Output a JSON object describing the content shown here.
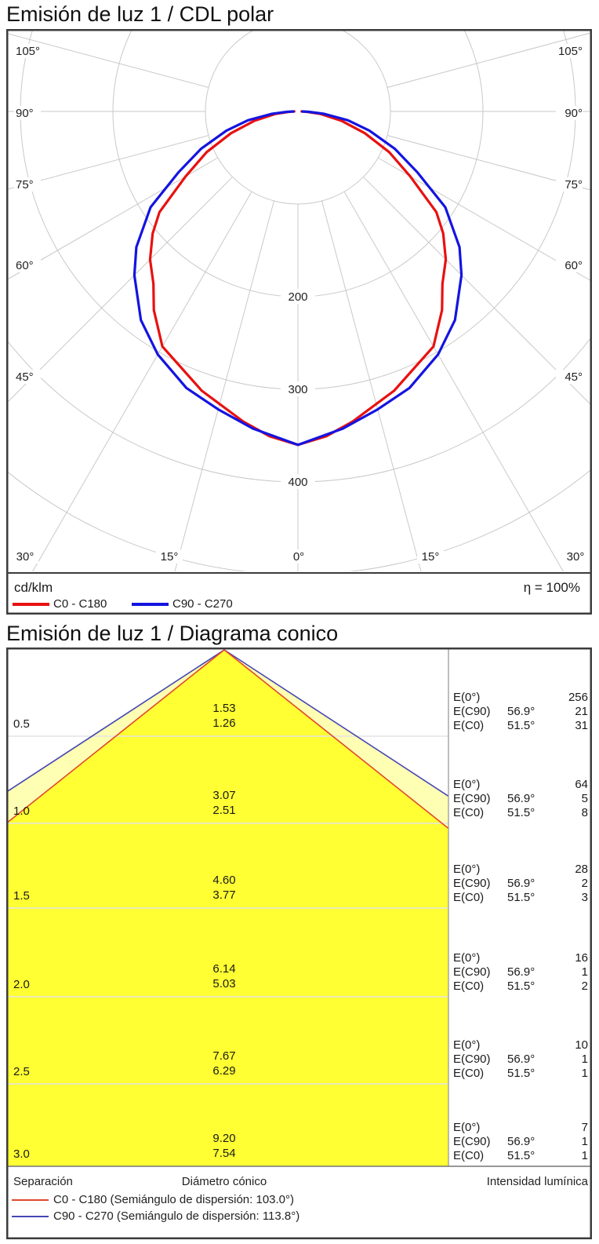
{
  "polar": {
    "title": "Emisión de luz 1 / CDL polar",
    "unit": "cd/klm",
    "efficiency": "η = 100%",
    "legend": [
      {
        "label": "C0 - C180",
        "color": "#e81111"
      },
      {
        "label": "C90 - C270",
        "color": "#1414e0"
      }
    ],
    "chart_data": {
      "type": "polar-intensity",
      "unit": "cd/klm",
      "gamma_step_deg": 15,
      "gamma_max_deg": 105,
      "ring_values": [
        100,
        200,
        300,
        400,
        500
      ],
      "ring_labels": [
        "200",
        "300",
        "400"
      ],
      "left_angle_labels": [
        "105°",
        "90°",
        "75°",
        "60°",
        "45°"
      ],
      "right_angle_labels": [
        "105°",
        "90°",
        "75°",
        "60°",
        "45°"
      ],
      "bottom_angle_labels": [
        "30°",
        "15°",
        "0°",
        "15°",
        "30°"
      ],
      "series": [
        {
          "name": "C0 - C180",
          "color": "#e81111",
          "points_deg_cd_per_klm": [
            [
              0,
              360
            ],
            [
              5,
              352
            ],
            [
              10,
              340
            ],
            [
              19,
              319
            ],
            [
              30,
              293
            ],
            [
              36,
              265
            ],
            [
              40,
              243
            ],
            [
              45,
              226
            ],
            [
              50,
              205
            ],
            [
              54,
              185
            ],
            [
              60,
              140
            ],
            [
              66,
              108
            ],
            [
              72,
              76
            ],
            [
              78,
              48
            ],
            [
              84,
              24
            ],
            [
              88,
              9
            ],
            [
              90,
              4
            ]
          ]
        },
        {
          "name": "C90 - C270",
          "color": "#1414e0",
          "points_deg_cd_per_klm": [
            [
              0,
              360
            ],
            [
              8,
              346
            ],
            [
              15,
              333
            ],
            [
              22,
              322
            ],
            [
              30,
              303
            ],
            [
              37,
              282
            ],
            [
              45,
              250
            ],
            [
              50,
              228
            ],
            [
              57,
              190
            ],
            [
              63,
              145
            ],
            [
              69,
              112
            ],
            [
              75,
              80
            ],
            [
              80,
              55
            ],
            [
              85,
              28
            ],
            [
              88,
              12
            ],
            [
              90,
              5
            ]
          ]
        }
      ]
    }
  },
  "cone": {
    "title": "Emisión de luz 1 / Diagrama conico",
    "footer": {
      "col_separation": "Separación",
      "col_diameter": "Diámetro cónico",
      "col_intensity": "Intensidad lumínica"
    },
    "legend": [
      {
        "label": "C0 - C180 (Semiángulo de dispersión: 103.0°)",
        "color": "#e0492e"
      },
      {
        "label": "C90 - C270 (Semiángulo de dispersión: 113.8°)",
        "color": "#4646b4"
      }
    ],
    "chart_data": {
      "type": "cone-diagram",
      "beam_half_angle_c0_deg": 51.5,
      "beam_half_angle_c90_deg": 56.9,
      "full_angle_c0_deg": 103.0,
      "full_angle_c90_deg": 113.8,
      "row_value_labels": {
        "e0": "E(0°)",
        "ec90": "E(C90)",
        "ec0": "E(C0)",
        "angle_c90": "56.9°",
        "angle_c0": "51.5°"
      },
      "rows": [
        {
          "separation": "0.5",
          "diameter_c90": "1.53",
          "diameter_c0": "1.26",
          "e0": "256",
          "ec90": "21",
          "ec0": "31"
        },
        {
          "separation": "1.0",
          "diameter_c90": "3.07",
          "diameter_c0": "2.51",
          "e0": "64",
          "ec90": "5",
          "ec0": "8"
        },
        {
          "separation": "1.5",
          "diameter_c90": "4.60",
          "diameter_c0": "3.77",
          "e0": "28",
          "ec90": "2",
          "ec0": "3"
        },
        {
          "separation": "2.0",
          "diameter_c90": "6.14",
          "diameter_c0": "5.03",
          "e0": "16",
          "ec90": "1",
          "ec0": "2"
        },
        {
          "separation": "2.5",
          "diameter_c90": "7.67",
          "diameter_c0": "6.29",
          "e0": "10",
          "ec90": "1",
          "ec0": "1"
        },
        {
          "separation": "3.0",
          "diameter_c90": "9.20",
          "diameter_c0": "7.54",
          "e0": "7",
          "ec90": "1",
          "ec0": "1"
        }
      ],
      "colors": {
        "beam_inner": "#ffff33",
        "beam_outer": "#ffffb3"
      }
    }
  }
}
